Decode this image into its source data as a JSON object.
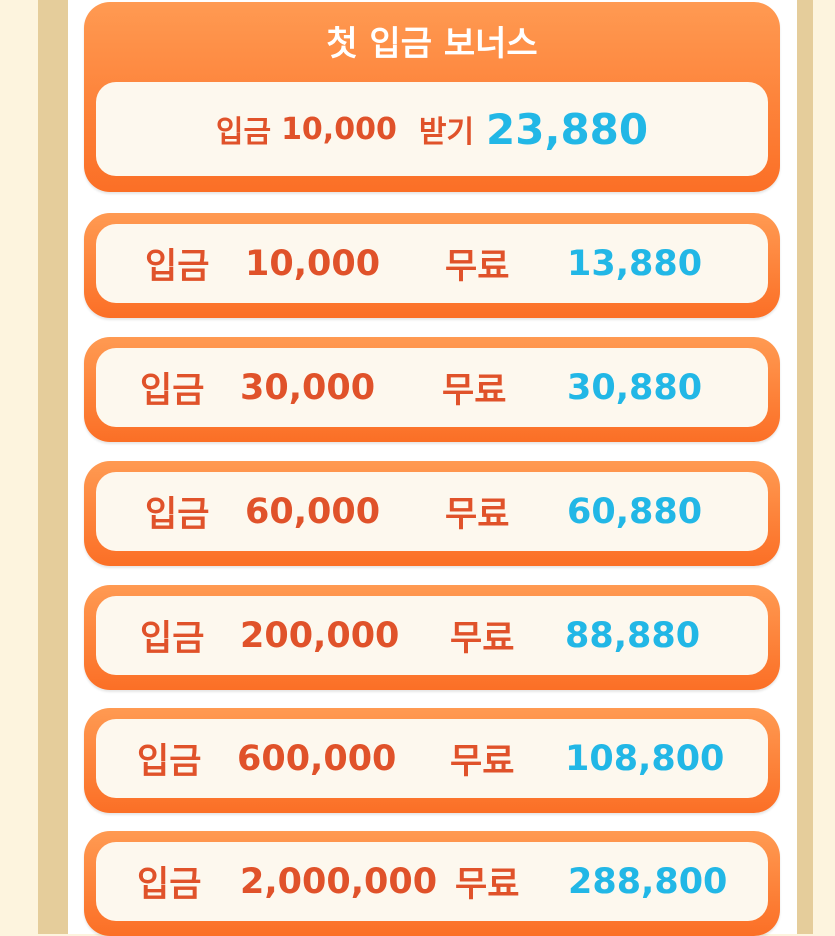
{
  "header": {
    "title": "첫 입금 보너스",
    "deposit_label": "입금",
    "deposit_amount": "10,000",
    "receive_label": "받기",
    "receive_amount": "23,880"
  },
  "rows": [
    {
      "deposit_label": "입금",
      "deposit": "10,000",
      "free_label": "무료",
      "free": "13,880"
    },
    {
      "deposit_label": "입금",
      "deposit": "30,000",
      "free_label": "무료",
      "free": "30,880"
    },
    {
      "deposit_label": "입금",
      "deposit": "60,000",
      "free_label": "무료",
      "free": "60,880"
    },
    {
      "deposit_label": "입금",
      "deposit": "200,000",
      "free_label": "무료",
      "free": "88,880"
    },
    {
      "deposit_label": "입금",
      "deposit": "600,000",
      "free_label": "무료",
      "free": "108,800"
    },
    {
      "deposit_label": "입금",
      "deposit": "2,000,000",
      "free_label": "무료",
      "free": "288,800"
    }
  ],
  "colors": {
    "orange": "#fb6f26",
    "label": "#e0522a",
    "value": "#22b7e6",
    "frame": "#e5cd9b"
  }
}
